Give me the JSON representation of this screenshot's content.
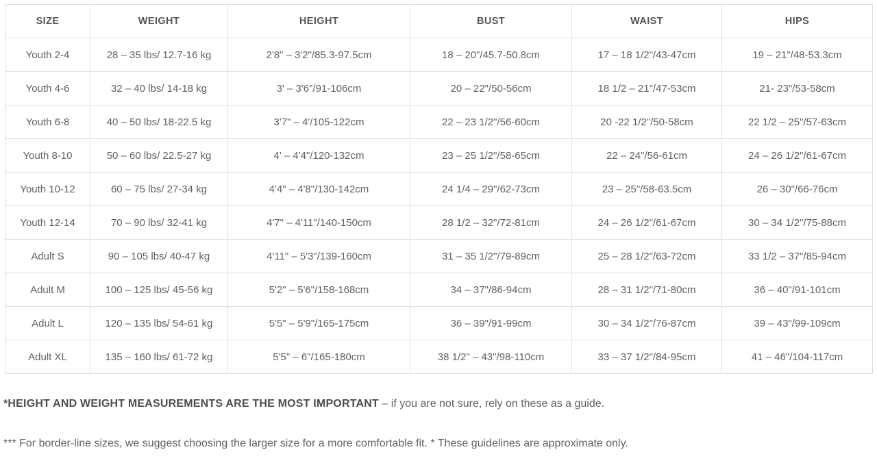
{
  "table": {
    "columns": [
      "SIZE",
      "WEIGHT",
      "HEIGHT",
      "BUST",
      "WAIST",
      "HIPS"
    ],
    "rows": [
      [
        "Youth 2-4",
        "28 – 35 lbs/ 12.7-16 kg",
        "2'8\" – 3'2\"/85.3-97.5cm",
        "18 – 20\"/45.7-50.8cm",
        "17 – 18 1/2\"/43-47cm",
        "19 – 21\"/48-53.3cm"
      ],
      [
        "Youth 4-6",
        "32 – 40 lbs/ 14-18 kg",
        "3' – 3'6\"/91-106cm",
        "20 – 22\"/50-56cm",
        "18 1/2 – 21\"/47-53cm",
        "21- 23\"/53-58cm"
      ],
      [
        "Youth 6-8",
        "40 – 50 lbs/ 18-22.5 kg",
        "3'7\" – 4'/105-122cm",
        "22 – 23 1/2\"/56-60cm",
        "20 -22 1/2\"/50-58cm",
        "22 1/2 – 25\"/57-63cm"
      ],
      [
        "Youth 8-10",
        "50 – 60 lbs/ 22.5-27 kg",
        "4' – 4'4\"/120-132cm",
        "23 – 25 1/2\"/58-65cm",
        "22 – 24\"/56-61cm",
        "24 – 26 1/2\"/61-67cm"
      ],
      [
        "Youth 10-12",
        "60 – 75 lbs/ 27-34 kg",
        "4'4\" – 4'8\"/130-142cm",
        "24 1/4 – 29\"/62-73cm",
        "23 – 25\"/58-63.5cm",
        "26 – 30\"/66-76cm"
      ],
      [
        "Youth 12-14",
        "70 – 90 lbs/ 32-41 kg",
        "4'7\" – 4'11\"/140-150cm",
        "28 1/2 – 32\"/72-81cm",
        "24 – 26 1/2\"/61-67cm",
        "30 – 34 1/2\"/75-88cm"
      ],
      [
        "Adult S",
        "90 – 105 lbs/ 40-47 kg",
        "4'11\" – 5'3\"/139-160cm",
        "31 – 35 1/2\"/79-89cm",
        "25 – 28 1/2\"/63-72cm",
        "33 1/2 – 37\"/85-94cm"
      ],
      [
        "Adult M",
        "100 – 125 lbs/ 45-56 kg",
        "5'2\" – 5'6\"/158-168cm",
        "34 – 37\"/86-94cm",
        "28 – 31 1/2\"/71-80cm",
        "36 – 40\"/91-101cm"
      ],
      [
        "Adult L",
        "120 – 135 lbs/ 54-61 kg",
        "5'5\" – 5'9\"/165-175cm",
        "36 – 39\"/91-99cm",
        "30 – 34 1/2\"/76-87cm",
        "39 – 43\"/99-109cm"
      ],
      [
        "Adult XL",
        "135 – 160 lbs/ 61-72 kg",
        "5'5\" – 6\"/165-180cm",
        "38 1/2\" – 43\"/98-110cm",
        "33 – 37 1/2\"/84-95cm",
        "41 – 46\"/104-117cm"
      ]
    ]
  },
  "notes": {
    "note1_bold": "*HEIGHT AND WEIGHT MEASUREMENTS ARE THE MOST IMPORTANT",
    "note1_rest": " – if you are not sure, rely on these as a guide.",
    "note2": "*** For border-line sizes, we suggest choosing the larger size for a more comfortable fit. * These guidelines are approximate only."
  },
  "colors": {
    "border": "#e0e0e0",
    "header_text": "#555555",
    "body_text": "#616161",
    "background": "#ffffff"
  }
}
